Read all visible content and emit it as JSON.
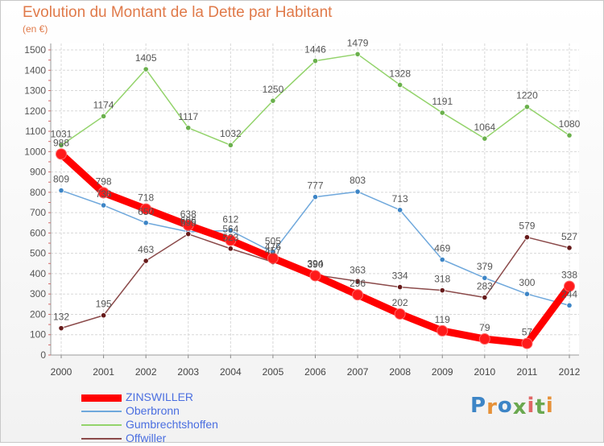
{
  "title": "Evolution du Montant de la Dette par Habitant",
  "subtitle": "(en €)",
  "chart_data": {
    "type": "line",
    "x": [
      "2000",
      "2001",
      "2002",
      "2003",
      "2004",
      "2005",
      "2006",
      "2007",
      "2008",
      "2009",
      "2010",
      "2011",
      "2012"
    ],
    "ylim": [
      0,
      1500
    ],
    "yticks": [
      0,
      100,
      200,
      300,
      400,
      500,
      600,
      700,
      800,
      900,
      1000,
      1100,
      1200,
      1300,
      1400,
      1500
    ],
    "grid": true,
    "legend_position": "bottom-left",
    "series": [
      {
        "name": "ZINSWILLER",
        "color": "#ff0000",
        "marker_color": "#ff1a1a",
        "thick": true,
        "values": [
          988,
          798,
          718,
          638,
          564,
          476,
          390,
          296,
          202,
          119,
          79,
          57,
          338
        ],
        "labels": [
          "988",
          "798",
          "718",
          "638",
          "564",
          "476",
          "390",
          "296",
          "202",
          "119",
          "79",
          "57",
          "338"
        ]
      },
      {
        "name": "Oberbronn",
        "color": "#6fa8dc",
        "marker_color": "#3d85c6",
        "thick": false,
        "values": [
          809,
          736,
          650,
          606,
          612,
          505,
          777,
          803,
          713,
          469,
          379,
          300,
          244
        ],
        "labels": [
          "809",
          "736",
          "650",
          "606",
          "612",
          "505",
          "777",
          "803",
          "713",
          "469",
          "379",
          "300",
          "244"
        ]
      },
      {
        "name": "Gumbrechtshoffen",
        "color": "#93d36b",
        "marker_color": "#6ab04c",
        "thick": false,
        "values": [
          1031,
          1174,
          1405,
          1117,
          1032,
          1250,
          1446,
          1479,
          1328,
          1191,
          1064,
          1220,
          1080
        ],
        "labels": [
          "1031",
          "1174",
          "1405",
          "1117",
          "1032",
          "1250",
          "1446",
          "1479",
          "1328",
          "1191",
          "1064",
          "1220",
          "1080"
        ]
      },
      {
        "name": "Offwiller",
        "color": "#8b4a4a",
        "marker_color": "#661a1a",
        "thick": false,
        "values": [
          132,
          195,
          463,
          595,
          523,
          457,
          394,
          363,
          334,
          318,
          283,
          579,
          527
        ],
        "labels": [
          "132",
          "195",
          "463",
          "595",
          "523",
          "457",
          "394",
          "363",
          "334",
          "318",
          "283",
          "579",
          "527"
        ]
      }
    ]
  },
  "logo": {
    "text": "Proxiti",
    "colors": [
      "#3d85c6",
      "#e69138",
      "#3d85c6",
      "#6aa84f",
      "#e06666",
      "#6aa84f",
      "#e69138"
    ]
  }
}
